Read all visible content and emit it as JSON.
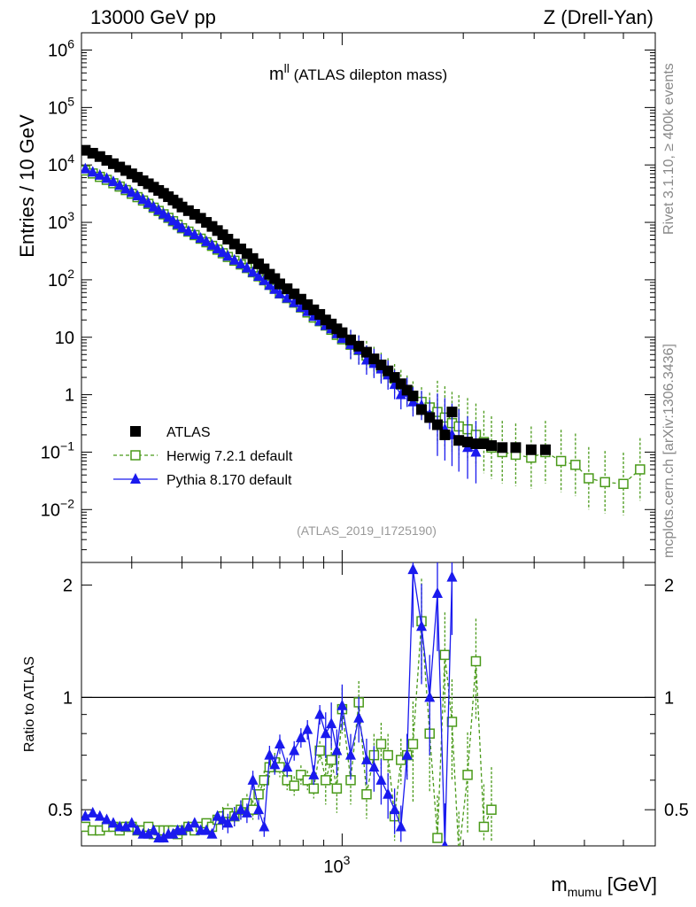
{
  "header": {
    "left": "13000 GeV pp",
    "right": "Z (Drell-Yan)"
  },
  "side_labels": {
    "top": "Rivet 3.1.10, ≥ 400k events",
    "bottom": "mcplots.cern.ch [arXiv:1306.3436]"
  },
  "chart_data": {
    "type": "scatter",
    "title": "m",
    "title_superscript": "ll",
    "title_suffix": " (ATLAS dilepton mass)",
    "analysis_id": "(ATLAS_2019_I1725190)",
    "xlabel": "m",
    "xlabel_subscript": "mumu",
    "xlabel_unit": " [GeV]",
    "ylabel": "Entries / 10 GeV",
    "ratio_ylabel": "Ratio to ATLAS",
    "xscale": "log",
    "xlim": [
      225,
      6000
    ],
    "x_tick_labels": [
      {
        "value": 1000,
        "base": "10",
        "exp": "3"
      }
    ],
    "ylim": [
      0.0012,
      2000000
    ],
    "yscale": "log",
    "y_tick_labels": [
      {
        "value": 0.01,
        "base": "10",
        "exp": "−2"
      },
      {
        "value": 0.1,
        "base": "10",
        "exp": "−1"
      },
      {
        "value": 1,
        "base": "1",
        "exp": ""
      },
      {
        "value": 10,
        "base": "10",
        "exp": ""
      },
      {
        "value": 100,
        "base": "10",
        "exp": "2"
      },
      {
        "value": 1000,
        "base": "10",
        "exp": "3"
      },
      {
        "value": 10000,
        "base": "10",
        "exp": "4"
      },
      {
        "value": 100000,
        "base": "10",
        "exp": "5"
      },
      {
        "value": 1000000,
        "base": "10",
        "exp": "6"
      }
    ],
    "ratio_ylim": [
      0.4,
      2.3
    ],
    "ratio_yscale": "log",
    "ratio_y_tick_labels": [
      {
        "value": 0.5,
        "label": "0.5"
      },
      {
        "value": 1,
        "label": "1"
      },
      {
        "value": 2,
        "label": "2"
      }
    ],
    "legend_placement": "bottom-left",
    "series": [
      {
        "name": "ATLAS",
        "color": "#000000",
        "marker": "square-filled",
        "x": [
          230,
          240,
          250,
          260,
          270,
          280,
          290,
          300,
          310,
          320,
          330,
          340,
          350,
          360,
          370,
          380,
          390,
          400,
          415,
          430,
          445,
          460,
          475,
          490,
          505,
          520,
          540,
          560,
          580,
          600,
          620,
          640,
          660,
          680,
          700,
          730,
          760,
          790,
          820,
          850,
          880,
          910,
          940,
          970,
          1000,
          1050,
          1100,
          1150,
          1200,
          1250,
          1300,
          1350,
          1400,
          1450,
          1500,
          1575,
          1650,
          1725,
          1800,
          1875,
          1950,
          2050,
          2150,
          2250,
          2350,
          2500,
          2700,
          2950,
          3200
        ],
        "y": [
          18000,
          16000,
          14000,
          12000,
          10500,
          9200,
          8000,
          7000,
          6100,
          5300,
          4700,
          4100,
          3600,
          3200,
          2800,
          2450,
          2150,
          1850,
          1600,
          1380,
          1180,
          1000,
          850,
          720,
          610,
          510,
          420,
          345,
          285,
          235,
          190,
          155,
          125,
          105,
          85,
          70,
          57,
          46,
          37,
          30,
          25,
          20,
          17,
          14,
          12,
          9,
          7,
          5.5,
          4.2,
          3.3,
          2.6,
          2.0,
          1.55,
          1.2,
          0.95,
          0.55,
          0.4,
          0.3,
          0.2,
          0.5,
          0.16,
          0.15,
          0.14,
          0.14,
          0.13,
          0.12,
          0.12,
          0.11,
          0.11
        ]
      },
      {
        "name": "Herwig 7.2.1 default",
        "color": "#4a9a1a",
        "marker": "square-open",
        "line": "dashed",
        "x": [
          230,
          240,
          250,
          260,
          270,
          280,
          290,
          300,
          310,
          320,
          330,
          340,
          350,
          360,
          370,
          380,
          390,
          400,
          415,
          430,
          445,
          460,
          475,
          490,
          505,
          520,
          540,
          560,
          580,
          600,
          620,
          640,
          660,
          680,
          700,
          730,
          760,
          790,
          820,
          850,
          880,
          910,
          940,
          970,
          1000,
          1050,
          1100,
          1150,
          1200,
          1250,
          1300,
          1350,
          1400,
          1450,
          1500,
          1575,
          1650,
          1725,
          1800,
          1875,
          1950,
          2050,
          2150,
          2250,
          2350,
          2500,
          2700,
          2950,
          3200,
          3500,
          3800,
          4100,
          4500,
          5000,
          5500
        ],
        "y": [
          8000,
          7100,
          6200,
          5500,
          4800,
          4200,
          3650,
          3150,
          2750,
          2400,
          2100,
          1800,
          1580,
          1380,
          1200,
          1050,
          910,
          790,
          690,
          600,
          520,
          450,
          390,
          335,
          290,
          250,
          215,
          185,
          160,
          135,
          115,
          98,
          82,
          70,
          58,
          48,
          40,
          33,
          27,
          22,
          19,
          16,
          13.5,
          11,
          9.2,
          7.4,
          6.0,
          4.8,
          3.8,
          3.0,
          2.4,
          1.9,
          1.5,
          1.2,
          0.95,
          0.75,
          0.6,
          0.5,
          0.4,
          0.32,
          0.28,
          0.25,
          0.2,
          0.15,
          0.12,
          0.1,
          0.09,
          0.08,
          0.1,
          0.07,
          0.06,
          0.035,
          0.03,
          0.028,
          0.05
        ]
      },
      {
        "name": "Pythia 8.170 default",
        "color": "#1a1aee",
        "marker": "triangle-filled",
        "line": "solid",
        "x": [
          230,
          240,
          250,
          260,
          270,
          280,
          290,
          300,
          310,
          320,
          330,
          340,
          350,
          360,
          370,
          380,
          390,
          400,
          415,
          430,
          445,
          460,
          475,
          490,
          505,
          520,
          540,
          560,
          580,
          600,
          620,
          640,
          660,
          680,
          700,
          730,
          760,
          790,
          820,
          850,
          880,
          910,
          940,
          970,
          1000,
          1050,
          1100,
          1150,
          1200,
          1250,
          1300,
          1350,
          1400,
          1450,
          1500,
          1575,
          1650,
          1725,
          1800,
          1875,
          1950,
          2050,
          2150
        ],
        "y": [
          8500,
          7500,
          6600,
          5800,
          5100,
          4400,
          3800,
          3300,
          2900,
          2500,
          2150,
          1850,
          1620,
          1400,
          1220,
          1060,
          920,
          800,
          700,
          610,
          530,
          460,
          400,
          345,
          298,
          258,
          220,
          188,
          160,
          135,
          115,
          97,
          80,
          68,
          57,
          48,
          40,
          33,
          28,
          23,
          19,
          16,
          14,
          11.5,
          9.5,
          7.5,
          6.0,
          4.0,
          3.5,
          2.8,
          2.2,
          1.5,
          1.0,
          1.1,
          0.75,
          0.65,
          0.45,
          0.3,
          0.25,
          0.2,
          0.16,
          0.12,
          0.1
        ]
      }
    ],
    "ratio_series": [
      {
        "name": "Herwig 7.2.1 default",
        "x": [
          230,
          240,
          250,
          260,
          270,
          280,
          290,
          300,
          310,
          320,
          330,
          340,
          350,
          360,
          370,
          380,
          390,
          400,
          415,
          430,
          445,
          460,
          475,
          490,
          505,
          520,
          540,
          560,
          580,
          600,
          620,
          640,
          660,
          680,
          700,
          730,
          760,
          790,
          820,
          850,
          880,
          910,
          940,
          970,
          1000,
          1050,
          1100,
          1150,
          1200,
          1250,
          1300,
          1350,
          1400,
          1450,
          1500,
          1575,
          1650,
          1725,
          1800,
          1875,
          1950,
          2050,
          2150,
          2250,
          2350
        ],
        "y": [
          0.45,
          0.44,
          0.44,
          0.45,
          0.45,
          0.44,
          0.45,
          0.45,
          0.44,
          0.44,
          0.45,
          0.43,
          0.44,
          0.44,
          0.44,
          0.44,
          0.43,
          0.44,
          0.45,
          0.44,
          0.45,
          0.46,
          0.45,
          0.47,
          0.48,
          0.49,
          0.48,
          0.5,
          0.52,
          0.5,
          0.55,
          0.6,
          0.65,
          0.67,
          0.65,
          0.6,
          0.58,
          0.62,
          0.6,
          0.57,
          0.72,
          0.6,
          0.68,
          0.57,
          0.93,
          0.6,
          0.97,
          0.55,
          0.7,
          0.75,
          0.7,
          0.48,
          0.68,
          0.7,
          0.75,
          1.6,
          0.8,
          0.42,
          1.3,
          0.86,
          0.38,
          0.62,
          1.25,
          0.45,
          0.5
        ]
      },
      {
        "name": "Pythia 8.170 default",
        "x": [
          230,
          240,
          250,
          260,
          270,
          280,
          290,
          300,
          310,
          320,
          330,
          340,
          350,
          360,
          370,
          380,
          390,
          400,
          415,
          430,
          445,
          460,
          475,
          490,
          505,
          520,
          540,
          560,
          580,
          600,
          620,
          640,
          660,
          680,
          700,
          730,
          760,
          790,
          820,
          850,
          880,
          910,
          940,
          970,
          1000,
          1050,
          1100,
          1150,
          1200,
          1250,
          1300,
          1350,
          1400,
          1450,
          1500,
          1575,
          1650,
          1725,
          1800,
          1875
        ],
        "y": [
          0.48,
          0.49,
          0.48,
          0.47,
          0.46,
          0.45,
          0.45,
          0.46,
          0.44,
          0.43,
          0.43,
          0.44,
          0.42,
          0.42,
          0.43,
          0.43,
          0.44,
          0.44,
          0.45,
          0.46,
          0.44,
          0.44,
          0.43,
          0.48,
          0.47,
          0.46,
          0.48,
          0.5,
          0.49,
          0.6,
          0.5,
          0.45,
          0.7,
          0.66,
          0.75,
          0.65,
          0.72,
          0.78,
          0.82,
          0.62,
          0.9,
          0.8,
          0.85,
          0.72,
          0.95,
          0.7,
          0.88,
          0.68,
          0.65,
          0.6,
          0.55,
          0.5,
          0.45,
          0.7,
          2.2,
          1.55,
          1.0,
          1.9,
          0.4,
          2.1
        ]
      }
    ]
  }
}
